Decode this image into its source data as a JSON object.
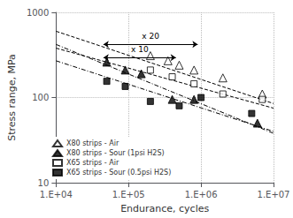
{
  "chart_data": {
    "type": "scatter",
    "xlabel": "Endurance, cycles",
    "ylabel": "Stress range, MPa",
    "log": true,
    "xlim": [
      10000,
      10000000
    ],
    "ylim": [
      10,
      1000
    ],
    "xticks": [
      {
        "value": 10000,
        "label": "1.E+04"
      },
      {
        "value": 100000,
        "label": "1.E+05"
      },
      {
        "value": 1000000,
        "label": "1.E+06"
      },
      {
        "value": 10000000,
        "label": "1.E+07"
      }
    ],
    "yticks": [
      10,
      100,
      1000
    ],
    "grid": true,
    "legend": "lower left",
    "series": [
      {
        "type": "line",
        "line_style": "dashed",
        "color": "#000000",
        "x": [
          10000,
          10000000
        ],
        "values": [
          600,
          85
        ]
      },
      {
        "type": "line",
        "line_style": "dashdot",
        "color": "#000000",
        "x": [
          10000,
          10000000
        ],
        "values": [
          420,
          38
        ]
      },
      {
        "type": "line",
        "line_style": "dashed",
        "color": "#000000",
        "x": [
          10000,
          10000000
        ],
        "values": [
          380,
          75
        ]
      },
      {
        "type": "line",
        "line_style": "dashdot",
        "color": "#000000",
        "x": [
          10000,
          10000000
        ],
        "values": [
          270,
          40
        ]
      },
      {
        "type": "scatter",
        "name": "X80 strips - Air",
        "marker": "triangle_open",
        "color": "#000000",
        "x": [
          200000,
          350000,
          500000,
          800000,
          2000000,
          7000000
        ],
        "values": [
          310,
          270,
          240,
          210,
          170,
          110
        ]
      },
      {
        "type": "scatter",
        "name": "X80 strips - Sour (1psi H2S)",
        "marker": "triangle",
        "color": "#000000",
        "x": [
          50000,
          90000,
          150000,
          400000,
          800000,
          6000000
        ],
        "values": [
          260,
          210,
          190,
          95,
          95,
          50
        ]
      },
      {
        "type": "scatter",
        "name": "X65 strips - Air",
        "marker": "square_open",
        "color": "#000000",
        "x": [
          200000,
          400000,
          800000,
          2000000,
          7000000
        ],
        "values": [
          210,
          175,
          145,
          110,
          95
        ]
      },
      {
        "type": "scatter",
        "name": "X65 strips - Sour (0.5psi H2S)",
        "marker": "square",
        "color": "#000000",
        "x": [
          50000,
          90000,
          200000,
          500000,
          1000000,
          5000000
        ],
        "values": [
          155,
          135,
          90,
          80,
          100,
          65
        ]
      }
    ],
    "annotations": [
      {
        "text": "x 20",
        "x": [
          45000,
          900000
        ],
        "y": 420
      },
      {
        "text": "x 10",
        "x": [
          45000,
          450000
        ],
        "y": 295
      }
    ]
  }
}
